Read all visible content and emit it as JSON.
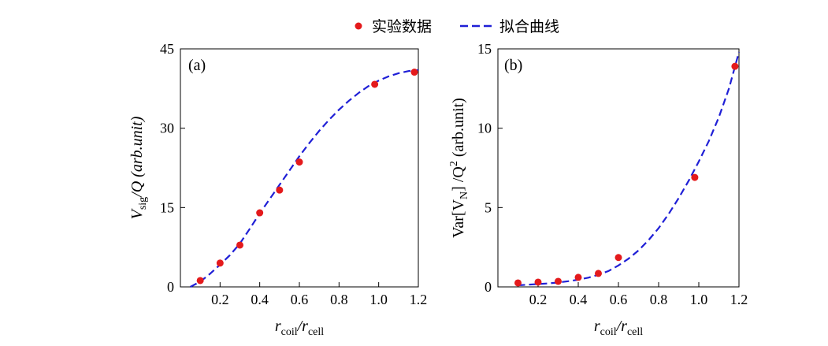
{
  "legend": {
    "points_label": "实验数据",
    "fit_label": "拟合曲线",
    "point_color": "#e41a1c",
    "fit_color": "#1f1fd6"
  },
  "chart_data": [
    {
      "type": "scatter",
      "panel_label": "(a)",
      "xlim": [
        0,
        1.2
      ],
      "ylim": [
        0,
        45
      ],
      "xticks": [
        0.2,
        0.4,
        0.6,
        0.8,
        1.0,
        1.2
      ],
      "xtick_labels": [
        "0.2",
        "0.4",
        "0.6",
        "0.8",
        "1.0",
        "1.2"
      ],
      "yticks": [
        0,
        15,
        30,
        45
      ],
      "ytick_labels": [
        "0",
        "15",
        "30",
        "45"
      ],
      "xlabel": {
        "main": "r",
        "sub1": "coil",
        "sep": "/r",
        "sub2": "cell"
      },
      "ylabel": {
        "main": "V",
        "sub": "sig",
        "rest": "/Q  (arb.unit)"
      },
      "points": {
        "x": [
          0.1,
          0.2,
          0.3,
          0.4,
          0.5,
          0.6,
          0.98,
          1.18
        ],
        "y": [
          1.2,
          4.5,
          7.9,
          14.0,
          18.3,
          23.6,
          38.3,
          40.6
        ]
      },
      "fit": {
        "x": [
          0.05,
          0.1,
          0.15,
          0.2,
          0.25,
          0.3,
          0.35,
          0.4,
          0.45,
          0.5,
          0.55,
          0.6,
          0.65,
          0.7,
          0.75,
          0.8,
          0.85,
          0.9,
          0.95,
          1.0,
          1.05,
          1.1,
          1.15,
          1.2
        ],
        "y": [
          0.0,
          1.0,
          2.5,
          4.2,
          6.0,
          8.2,
          11.0,
          13.9,
          16.6,
          19.3,
          22.0,
          24.7,
          27.2,
          29.5,
          31.6,
          33.5,
          35.2,
          36.7,
          38.0,
          39.0,
          39.8,
          40.4,
          40.8,
          41.0
        ]
      }
    },
    {
      "type": "scatter",
      "panel_label": "(b)",
      "xlim": [
        0,
        1.2
      ],
      "ylim": [
        0,
        15
      ],
      "xticks": [
        0.2,
        0.4,
        0.6,
        0.8,
        1.0,
        1.2
      ],
      "xtick_labels": [
        "0.2",
        "0.4",
        "0.6",
        "0.8",
        "1.0",
        "1.2"
      ],
      "yticks": [
        0,
        5,
        10,
        15
      ],
      "ytick_labels": [
        "0",
        "5",
        "10",
        "15"
      ],
      "xlabel": {
        "main": "r",
        "sub1": "coil",
        "sep": "/r",
        "sub2": "cell"
      },
      "ylabel": {
        "main": "Var[V",
        "sub": "N",
        "rest": "] /Q",
        "sup": "2",
        "tail": " (arb.unit)"
      },
      "points": {
        "x": [
          0.1,
          0.2,
          0.3,
          0.4,
          0.5,
          0.6,
          0.98,
          1.18
        ],
        "y": [
          0.25,
          0.3,
          0.35,
          0.6,
          0.85,
          1.85,
          6.9,
          13.9
        ]
      },
      "fit": {
        "x": [
          0.1,
          0.15,
          0.2,
          0.25,
          0.3,
          0.35,
          0.4,
          0.45,
          0.5,
          0.55,
          0.6,
          0.65,
          0.7,
          0.75,
          0.8,
          0.85,
          0.9,
          0.95,
          1.0,
          1.05,
          1.1,
          1.15,
          1.2
        ],
        "y": [
          0.1,
          0.14,
          0.18,
          0.22,
          0.28,
          0.36,
          0.45,
          0.58,
          0.76,
          1.0,
          1.35,
          1.78,
          2.3,
          2.95,
          3.7,
          4.6,
          5.6,
          6.7,
          7.9,
          9.2,
          10.7,
          12.5,
          14.8
        ]
      }
    }
  ]
}
